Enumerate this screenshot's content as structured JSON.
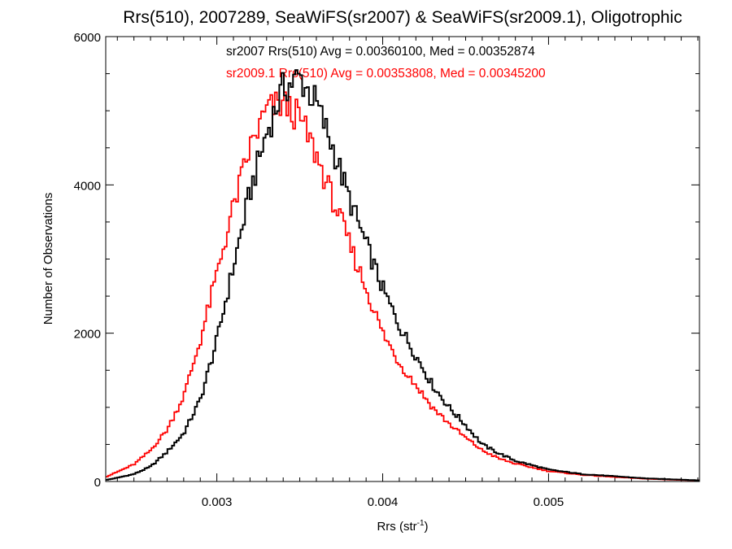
{
  "chart_data": {
    "type": "line",
    "title": "Rrs(510), 2007289, SeaWiFS(sr2007) & SeaWiFS(sr2009.1), Oligotrophic",
    "xlabel_main": "Rrs (str",
    "xlabel_sup": "-1",
    "xlabel_close": ")",
    "ylabel": "Number of Observations",
    "xlim": [
      0.00233,
      0.00591
    ],
    "ylim": [
      0,
      6000
    ],
    "x_ticks": [
      0.003,
      0.004,
      0.005
    ],
    "x_tick_labels": [
      "0.003",
      "0.004",
      "0.005"
    ],
    "y_ticks": [
      0,
      2000,
      4000,
      6000
    ],
    "y_tick_labels": [
      "0",
      "2000",
      "4000",
      "6000"
    ],
    "annotations": [
      "sr2007 Rrs(510) Avg = 0.00360100, Med = 0.00352874",
      "sr2009.1 Rrs(510) Avg = 0.00353808, Med = 0.00345200"
    ],
    "series": [
      {
        "color": "#000000",
        "x": [
          0.00233,
          0.0024,
          0.0025,
          0.0026,
          0.0027,
          0.0028,
          0.0029,
          0.003,
          0.0031,
          0.0032,
          0.0033,
          0.0034,
          0.0035,
          0.0036,
          0.0037,
          0.0038,
          0.0039,
          0.004,
          0.0041,
          0.0042,
          0.0043,
          0.0044,
          0.0045,
          0.0046,
          0.0047,
          0.0048,
          0.005,
          0.0052,
          0.0054,
          0.0056,
          0.0058,
          0.00591
        ],
        "y": [
          20,
          50,
          100,
          200,
          400,
          650,
          1100,
          1900,
          2900,
          3900,
          4700,
          5300,
          5450,
          5100,
          4500,
          3800,
          3200,
          2600,
          2100,
          1700,
          1300,
          1000,
          760,
          500,
          380,
          280,
          160,
          100,
          70,
          40,
          25,
          15
        ]
      },
      {
        "color": "#ff0000",
        "x": [
          0.00233,
          0.0024,
          0.0025,
          0.0026,
          0.0027,
          0.0028,
          0.0029,
          0.003,
          0.0031,
          0.0032,
          0.0033,
          0.0034,
          0.0035,
          0.0036,
          0.0037,
          0.0038,
          0.0039,
          0.004,
          0.0041,
          0.0042,
          0.0043,
          0.0044,
          0.0045,
          0.0046,
          0.0047,
          0.0048,
          0.005,
          0.0052,
          0.0054,
          0.0056,
          0.0058,
          0.00591
        ],
        "y": [
          60,
          130,
          230,
          420,
          700,
          1150,
          1900,
          2800,
          3700,
          4500,
          5000,
          5100,
          4900,
          4400,
          3800,
          3200,
          2600,
          2000,
          1600,
          1300,
          1000,
          780,
          590,
          420,
          310,
          240,
          140,
          90,
          60,
          35,
          20,
          15
        ]
      }
    ]
  }
}
